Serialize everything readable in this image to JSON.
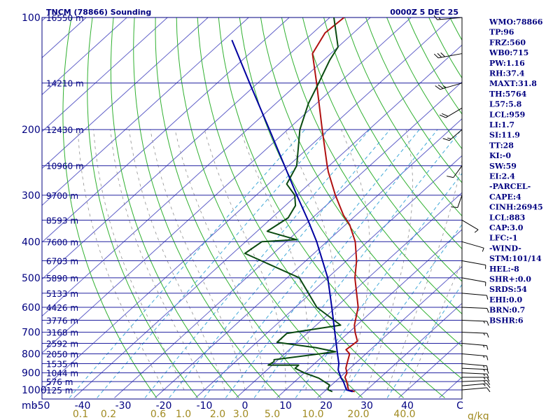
{
  "header": {
    "station": "TNCM (78866) Sounding",
    "time": "0000Z  5 DEC 25"
  },
  "chart_data": {
    "type": "line",
    "title": "TNCM (78866) Sounding",
    "pressure_axis": {
      "unit_label": "mb",
      "ticks": [
        100,
        200,
        300,
        400,
        500,
        600,
        700,
        800,
        900,
        1000
      ],
      "range": [
        100,
        1050
      ],
      "scale": "log"
    },
    "temperature_axis": {
      "unit_label": "C",
      "ticks": [
        -50,
        -40,
        -30,
        -20,
        -10,
        0,
        10,
        20,
        30,
        40
      ],
      "range": [
        -50,
        50
      ]
    },
    "mixing_ratio_axis": {
      "unit_label": "g/kg",
      "ticks": [
        "0.1",
        "0.2",
        "0.6",
        "1.0",
        "2.0",
        "3.0",
        "5.0",
        "10.0",
        "20.0",
        "40.0"
      ]
    },
    "height_labels": [
      {
        "p": 100,
        "label": "16550 m"
      },
      {
        "p": 150,
        "label": "14210 m"
      },
      {
        "p": 200,
        "label": "12430 m"
      },
      {
        "p": 250,
        "label": "10960 m"
      },
      {
        "p": 300,
        "label": "9700 m"
      },
      {
        "p": 350,
        "label": "8593 m"
      },
      {
        "p": 400,
        "label": "7600 m"
      },
      {
        "p": 450,
        "label": "6703 m"
      },
      {
        "p": 500,
        "label": "5890 m"
      },
      {
        "p": 550,
        "label": "5133 m"
      },
      {
        "p": 600,
        "label": "4426 m"
      },
      {
        "p": 650,
        "label": "3776 m"
      },
      {
        "p": 700,
        "label": "3168 m"
      },
      {
        "p": 750,
        "label": "2592 m"
      },
      {
        "p": 800,
        "label": "2050 m"
      },
      {
        "p": 850,
        "label": "1535 m"
      },
      {
        "p": 900,
        "label": "1044 m"
      },
      {
        "p": 950,
        "label": "576 m"
      },
      {
        "p": 1000,
        "label": "125 m"
      }
    ],
    "series": [
      {
        "name": "",
        "color": "#b01010",
        "points": [
          {
            "p": 1011,
            "t": 27.5
          },
          {
            "p": 1000,
            "t": 25.5
          },
          {
            "p": 950,
            "t": 22.8
          },
          {
            "p": 925,
            "t": 21.2
          },
          {
            "p": 900,
            "t": 20.5
          },
          {
            "p": 875,
            "t": 19.0
          },
          {
            "p": 850,
            "t": 18.0
          },
          {
            "p": 800,
            "t": 16.0
          },
          {
            "p": 780,
            "t": 14.0
          },
          {
            "p": 740,
            "t": 14.5
          },
          {
            "p": 700,
            "t": 11.5
          },
          {
            "p": 670,
            "t": 9.4
          },
          {
            "p": 600,
            "t": 5.5
          },
          {
            "p": 500,
            "t": -3.3
          },
          {
            "p": 450,
            "t": -7.5
          },
          {
            "p": 400,
            "t": -13.0
          },
          {
            "p": 360,
            "t": -19.0
          },
          {
            "p": 340,
            "t": -23.0
          },
          {
            "p": 300,
            "t": -30.5
          },
          {
            "p": 260,
            "t": -38.5
          },
          {
            "p": 250,
            "t": -40.5
          },
          {
            "p": 200,
            "t": -51.5
          },
          {
            "p": 150,
            "t": -65.5
          },
          {
            "p": 125,
            "t": -74.5
          },
          {
            "p": 110,
            "t": -77.0
          },
          {
            "p": 100,
            "t": -76.5
          }
        ]
      },
      {
        "name": "",
        "color": "#0a4a10",
        "points": [
          {
            "p": 1011,
            "t": 22.0
          },
          {
            "p": 1000,
            "t": 20.5
          },
          {
            "p": 990,
            "t": 20.0
          },
          {
            "p": 970,
            "t": 19.5
          },
          {
            "p": 930,
            "t": 15.0
          },
          {
            "p": 900,
            "t": 10.0
          },
          {
            "p": 875,
            "t": 6.5
          },
          {
            "p": 858,
            "t": 6.5
          },
          {
            "p": 858,
            "t": -1.0
          },
          {
            "p": 840,
            "t": -0.5
          },
          {
            "p": 830,
            "t": -1.0
          },
          {
            "p": 790,
            "t": 12.0
          },
          {
            "p": 770,
            "t": 6.0
          },
          {
            "p": 745,
            "t": -5.0
          },
          {
            "p": 705,
            "t": -5.0
          },
          {
            "p": 670,
            "t": 6.0
          },
          {
            "p": 600,
            "t": -4.7
          },
          {
            "p": 500,
            "t": -17.0
          },
          {
            "p": 430,
            "t": -37.0
          },
          {
            "p": 400,
            "t": -36.0
          },
          {
            "p": 395,
            "t": -28.0
          },
          {
            "p": 375,
            "t": -37.5
          },
          {
            "p": 345,
            "t": -36.0
          },
          {
            "p": 320,
            "t": -37.5
          },
          {
            "p": 300,
            "t": -40.5
          },
          {
            "p": 280,
            "t": -45.5
          },
          {
            "p": 250,
            "t": -48.0
          },
          {
            "p": 200,
            "t": -57.0
          },
          {
            "p": 170,
            "t": -62.0
          },
          {
            "p": 150,
            "t": -65.0
          },
          {
            "p": 130,
            "t": -68.5
          },
          {
            "p": 120,
            "t": -70.0
          },
          {
            "p": 100,
            "t": -79.0
          }
        ]
      },
      {
        "name": "",
        "color": "#0000a0",
        "points": [
          {
            "p": 1011,
            "t": 27.0
          },
          {
            "p": 1000,
            "t": 25.0
          },
          {
            "p": 950,
            "t": 22.0
          },
          {
            "p": 930,
            "t": 20.5
          },
          {
            "p": 883,
            "t": 17.5
          },
          {
            "p": 850,
            "t": 16.0
          },
          {
            "p": 800,
            "t": 13.0
          },
          {
            "p": 700,
            "t": 6.5
          },
          {
            "p": 600,
            "t": -1.0
          },
          {
            "p": 500,
            "t": -10.0
          },
          {
            "p": 400,
            "t": -22.5
          },
          {
            "p": 350,
            "t": -30.5
          },
          {
            "p": 300,
            "t": -40.0
          },
          {
            "p": 250,
            "t": -51.0
          },
          {
            "p": 200,
            "t": -64.5
          },
          {
            "p": 150,
            "t": -82.0
          },
          {
            "p": 115,
            "t": -98.0
          }
        ]
      }
    ],
    "wind_barbs": [
      {
        "p": 1000,
        "dir": 80,
        "spd": 10
      },
      {
        "p": 975,
        "dir": 80,
        "spd": 15
      },
      {
        "p": 950,
        "dir": 85,
        "spd": 15
      },
      {
        "p": 925,
        "dir": 90,
        "spd": 15
      },
      {
        "p": 900,
        "dir": 95,
        "spd": 15
      },
      {
        "p": 875,
        "dir": 95,
        "spd": 15
      },
      {
        "p": 850,
        "dir": 100,
        "spd": 15
      },
      {
        "p": 800,
        "dir": 100,
        "spd": 15
      },
      {
        "p": 750,
        "dir": 100,
        "spd": 15
      },
      {
        "p": 700,
        "dir": 95,
        "spd": 15
      },
      {
        "p": 650,
        "dir": 95,
        "spd": 15
      },
      {
        "p": 600,
        "dir": 95,
        "spd": 10
      },
      {
        "p": 550,
        "dir": 100,
        "spd": 10
      },
      {
        "p": 500,
        "dir": 110,
        "spd": 10
      },
      {
        "p": 450,
        "dir": 110,
        "spd": 10
      },
      {
        "p": 400,
        "dir": 120,
        "spd": 10
      },
      {
        "p": 350,
        "dir": 140,
        "spd": 10
      },
      {
        "p": 300,
        "dir": 190,
        "spd": 10
      },
      {
        "p": 250,
        "dir": 200,
        "spd": 10
      },
      {
        "p": 200,
        "dir": 210,
        "spd": 15
      },
      {
        "p": 175,
        "dir": 220,
        "spd": 20
      },
      {
        "p": 150,
        "dir": 240,
        "spd": 25
      },
      {
        "p": 125,
        "dir": 250,
        "spd": 30
      },
      {
        "p": 100,
        "dir": 260,
        "spd": 15
      }
    ],
    "grid": true
  },
  "indices": [
    "WMO:78866",
    "TP:96",
    "FRZ:560",
    "WB0:715",
    "PW:1.16",
    "RH:37.4",
    "MAXT:31.8",
    "TH:5764",
    "L57:5.8",
    "LCL:959",
    "LI:1.7",
    "SI:11.9",
    "TT:28",
    "KI:-0",
    "SW:59",
    "EI:2.4",
    "-PARCEL-",
    "CAPE:4",
    "CINH:26945",
    "LCL:883",
    "CAP:3.0",
    "LFC:-1",
    "-WIND-",
    "STM:101/14",
    "HEL:-8",
    "SHR+:0.0",
    "SRDS:54",
    "EHI:0.0",
    "BRN:0.7",
    "BSHR:6"
  ],
  "colors": {
    "isobar": "#2020a0",
    "isotherm": "#6060c8",
    "dry_adiabat": "#30b030",
    "moist_adiabat": "#909090",
    "mixing_ratio": "#40a8d8",
    "label_blue": "#000080",
    "label_olive": "#a08a20"
  }
}
